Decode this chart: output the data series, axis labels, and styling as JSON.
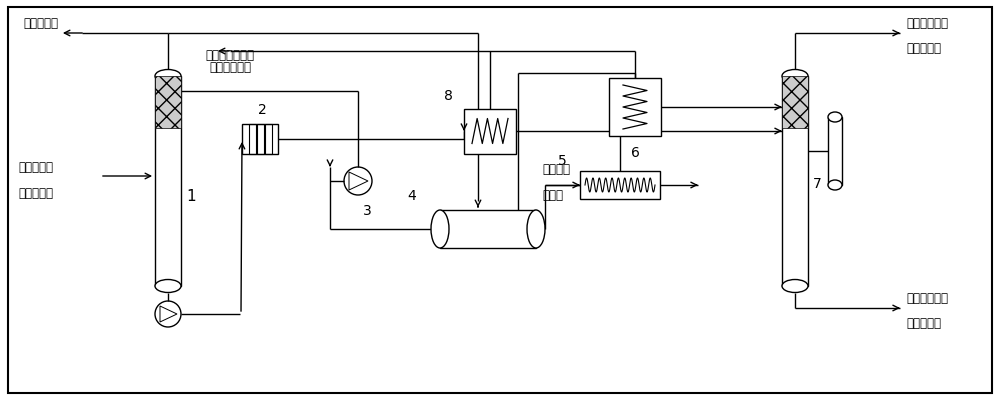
{
  "bg": "#ffffff",
  "lc": "#000000",
  "lw": 1.0,
  "fs": 8.5,
  "labels": {
    "tail_gas": "尾气去烟囱",
    "rich_methanol_1": "富甲醇来自",
    "rich_methanol_2": "甲醇洗涤塔",
    "lean_methanol_1": "贫甲醇去经氨冷",
    "lean_methanol_2": "器进一步降温",
    "acid_gas_1": "酸性气去硫组",
    "acid_gas_2": "分处理装置",
    "hot_methanol_1": "热侧甲醇去甲",
    "hot_methanol_2": "醇水分离塔",
    "cooling_water_1": "循环水来",
    "cooling_water_2": "自管网",
    "n1": "1",
    "n2": "2",
    "n3": "3",
    "n4": "4",
    "n5": "5",
    "n6": "6",
    "n7": "7",
    "n8": "8"
  }
}
